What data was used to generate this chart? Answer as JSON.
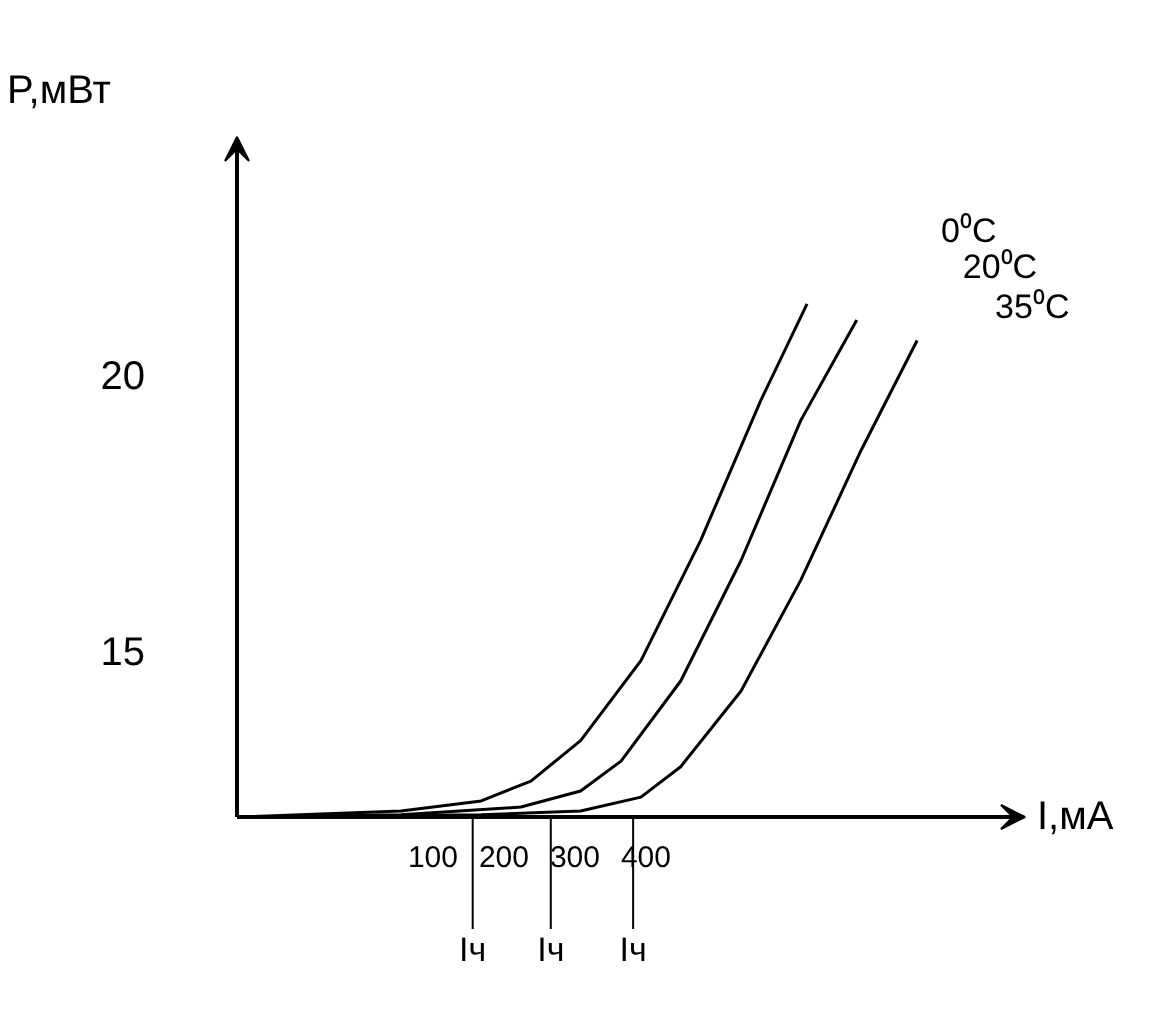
{
  "chart_data": {
    "type": "line",
    "xlabel": "I,мА",
    "ylabel": "P,мВт",
    "xlim": [
      -176,
      934
    ],
    "ylim": [
      12,
      24.3
    ],
    "xticks": [
      100,
      200,
      300,
      400
    ],
    "yticks": [
      15,
      20
    ],
    "grid": false,
    "marker": "none",
    "line_style": "solid",
    "series": [
      {
        "name": "0⁰C",
        "color": "#000000",
        "x": [
          -170,
          55,
          168,
          238,
          308,
          393,
          477,
          562,
          627
        ],
        "values": [
          12,
          12.11,
          12.29,
          12.65,
          13.38,
          14.83,
          17.0,
          19.54,
          21.28
        ]
      },
      {
        "name": "20⁰C",
        "color": "#000000",
        "x": [
          -170,
          55,
          224,
          308,
          365,
          449,
          534,
          618,
          697
        ],
        "values": [
          12,
          12.04,
          12.18,
          12.47,
          13.01,
          14.46,
          16.64,
          19.17,
          20.99
        ]
      },
      {
        "name": "35⁰C",
        "color": "#000000",
        "x": [
          -170,
          168,
          308,
          393,
          449,
          534,
          618,
          703,
          782
        ],
        "values": [
          12,
          12.04,
          12.11,
          12.36,
          12.91,
          14.28,
          16.28,
          18.63,
          20.62
        ]
      }
    ],
    "ref_lines": [
      {
        "axis": "x",
        "value": 156,
        "label": "Iч"
      },
      {
        "axis": "x",
        "value": 266,
        "label": "Iч"
      },
      {
        "axis": "x",
        "value": 382,
        "label": "Iч"
      }
    ]
  }
}
